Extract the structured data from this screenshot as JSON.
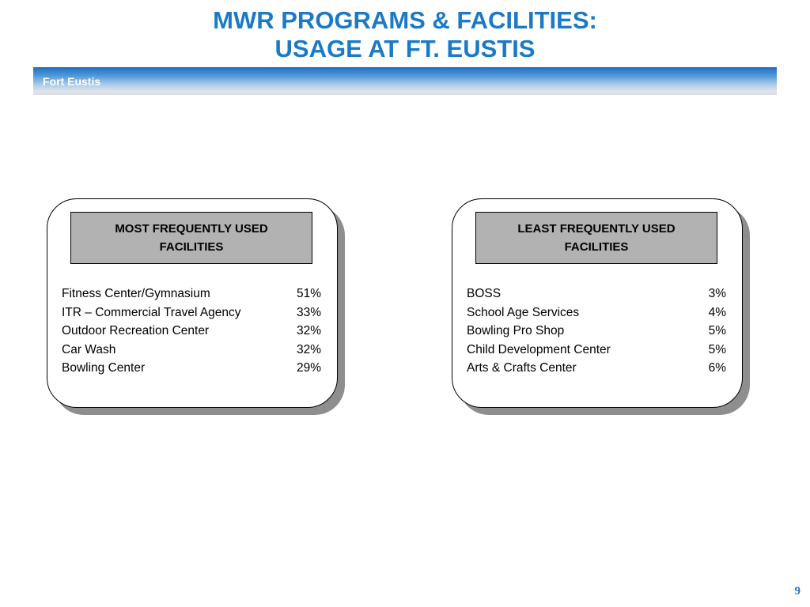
{
  "title": {
    "line1": "MWR PROGRAMS & FACILITIES:",
    "line2": "USAGE AT FT. EUSTIS"
  },
  "banner": {
    "label": "Fort Eustis"
  },
  "panels": {
    "most": {
      "header_line1": "MOST FREQUENTLY USED",
      "header_line2": "FACILITIES",
      "items": [
        {
          "name": "Fitness Center/Gymnasium",
          "pct": "51%"
        },
        {
          "name": "ITR – Commercial Travel Agency",
          "pct": "33%"
        },
        {
          "name": "Outdoor Recreation Center",
          "pct": "32%"
        },
        {
          "name": "Car Wash",
          "pct": "32%"
        },
        {
          "name": "Bowling Center",
          "pct": "29%"
        }
      ]
    },
    "least": {
      "header_line1": "LEAST FREQUENTLY USED",
      "header_line2": "FACILITIES",
      "items": [
        {
          "name": "BOSS",
          "pct": "3%"
        },
        {
          "name": "School Age Services",
          "pct": "4%"
        },
        {
          "name": "Bowling Pro Shop",
          "pct": "5%"
        },
        {
          "name": "Child Development Center",
          "pct": "5%"
        },
        {
          "name": "Arts & Crafts Center",
          "pct": "6%"
        }
      ]
    }
  },
  "page_number": "9",
  "colors": {
    "title": "#1a7ac8",
    "banner_top": "#1f6fc2",
    "banner_bottom": "#d9dde1",
    "header_fill": "#b2b2b2",
    "shadow": "#8e8e8e"
  }
}
